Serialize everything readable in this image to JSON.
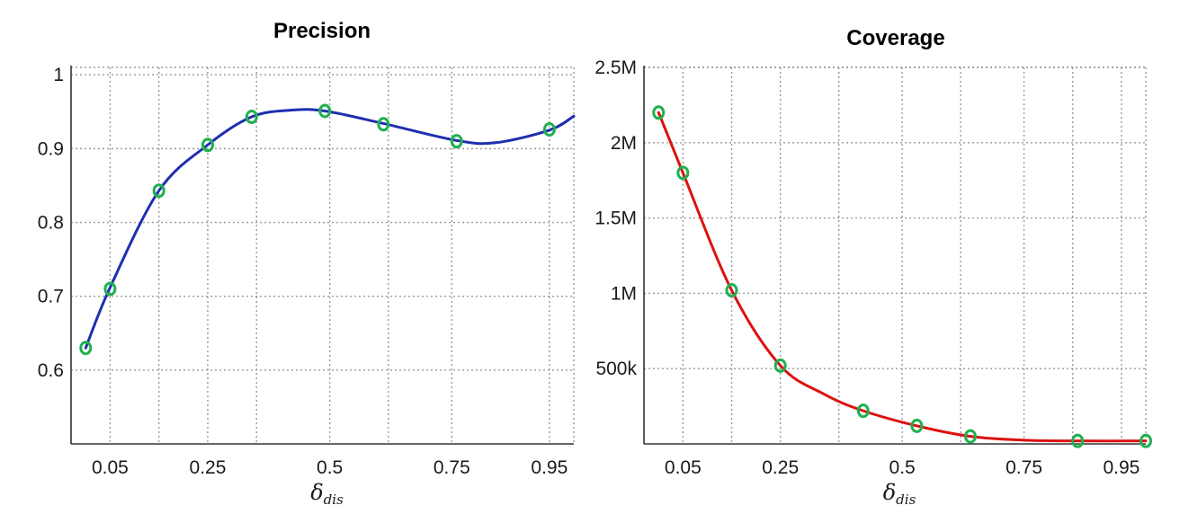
{
  "chart_data": [
    {
      "id": "precision",
      "type": "line",
      "title": "Precision",
      "xlabel": "δ",
      "xlabel_sub": "dis",
      "ylabel": "",
      "xlim": [
        -0.03,
        1.0
      ],
      "ylim": [
        0.5,
        1.01
      ],
      "xticks": [
        0.05,
        0.25,
        0.5,
        0.75,
        0.95
      ],
      "xtick_labels": [
        "0.05",
        "0.25",
        "0.5",
        "0.75",
        "0.95"
      ],
      "yticks": [
        0.6,
        0.7,
        0.8,
        0.9,
        1.0
      ],
      "ytick_labels": [
        "0.6",
        "0.7",
        "0.8",
        "0.9",
        "1"
      ],
      "xgrid": [
        0.05,
        0.15,
        0.25,
        0.35,
        0.5,
        0.62,
        0.75,
        0.95
      ],
      "grid": true,
      "line_color": "#1f2fb0",
      "marker_color": "#1fb050",
      "series": [
        {
          "x": [
            -0.0,
            0.05,
            0.15,
            0.25,
            0.34,
            0.49,
            0.61,
            0.76,
            0.95
          ],
          "y": [
            0.63,
            0.71,
            0.843,
            0.905,
            0.943,
            0.951,
            0.933,
            0.91,
            0.926
          ]
        }
      ],
      "curve": {
        "x": [
          -0.0,
          0.05,
          0.15,
          0.25,
          0.34,
          0.42,
          0.49,
          0.61,
          0.76,
          0.84,
          0.95,
          1.0
        ],
        "y": [
          0.63,
          0.712,
          0.843,
          0.905,
          0.943,
          0.952,
          0.951,
          0.934,
          0.911,
          0.908,
          0.925,
          0.944
        ]
      }
    },
    {
      "id": "coverage",
      "type": "line",
      "title": "Coverage",
      "xlabel": "δ",
      "xlabel_sub": "dis",
      "ylabel": "",
      "xlim": [
        -0.03,
        1.0
      ],
      "ylim": [
        0,
        2.5
      ],
      "xticks": [
        0.05,
        0.25,
        0.5,
        0.75,
        0.95
      ],
      "xtick_labels": [
        "0.05",
        "0.25",
        "0.5",
        "0.75",
        "0.95"
      ],
      "yticks": [
        0.5,
        1.0,
        1.5,
        2.0,
        2.5
      ],
      "ytick_labels": [
        "500k",
        "1M",
        "1.5M",
        "2M",
        "2.5M"
      ],
      "xgrid": [
        0.05,
        0.15,
        0.25,
        0.37,
        0.5,
        0.62,
        0.75,
        0.85,
        0.95
      ],
      "grid": true,
      "line_color": "#dd1111",
      "marker_color": "#1fb050",
      "series": [
        {
          "x": [
            0.0,
            0.05,
            0.15,
            0.25,
            0.42,
            0.53,
            0.64,
            0.86,
            1.0
          ],
          "y": [
            2.2,
            1.8,
            1.02,
            0.52,
            0.22,
            0.12,
            0.05,
            0.02,
            0.02
          ]
        }
      ],
      "curve": {
        "x": [
          0.0,
          0.05,
          0.15,
          0.25,
          0.34,
          0.42,
          0.53,
          0.64,
          0.75,
          0.86,
          1.0
        ],
        "y": [
          2.2,
          1.8,
          1.02,
          0.52,
          0.33,
          0.22,
          0.12,
          0.05,
          0.025,
          0.02,
          0.02
        ]
      }
    }
  ]
}
